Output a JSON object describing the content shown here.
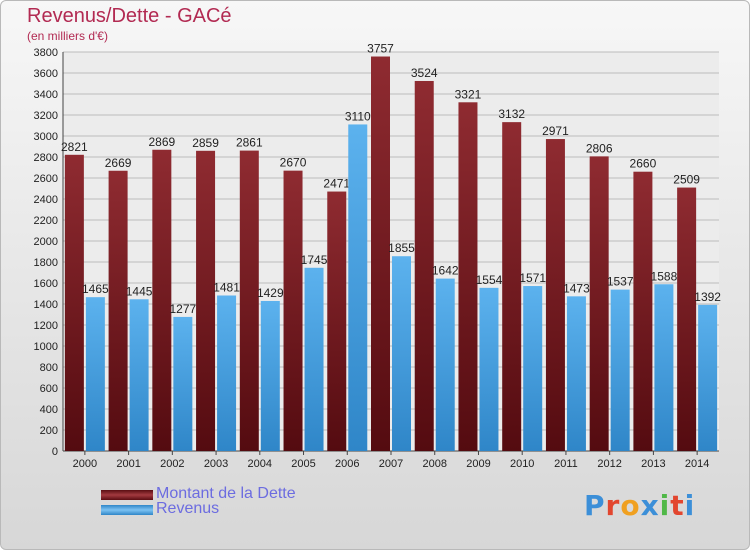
{
  "title": "Revenus/Dette - GACé",
  "subtitle": "(en milliers d'€)",
  "colors": {
    "dette": "#7a1d23",
    "revenus": "#4aa3e4",
    "title": "#b22a52",
    "legend_text": "#6c6ce0"
  },
  "legend": [
    {
      "label": "Montant de la Dette",
      "color": "#7a1d23"
    },
    {
      "label": "Revenus",
      "color": "#4aa3e4"
    }
  ],
  "logo": {
    "text": "Proxiti"
  },
  "chart_data": {
    "type": "bar",
    "categories": [
      "2000",
      "2001",
      "2002",
      "2003",
      "2004",
      "2005",
      "2006",
      "2007",
      "2008",
      "2009",
      "2010",
      "2011",
      "2012",
      "2013",
      "2014"
    ],
    "series": [
      {
        "name": "Montant de la Dette",
        "values": [
          2821,
          2669,
          2869,
          2859,
          2861,
          2670,
          2471,
          3757,
          3524,
          3321,
          3132,
          2971,
          2806,
          2660,
          2509
        ]
      },
      {
        "name": "Revenus",
        "values": [
          1465,
          1445,
          1277,
          1481,
          1429,
          1745,
          3110,
          1855,
          1642,
          1554,
          1571,
          1473,
          1537,
          1588,
          1392
        ]
      }
    ],
    "ylim": [
      0,
      3800
    ],
    "yticks": [
      0,
      200,
      400,
      600,
      800,
      1000,
      1200,
      1400,
      1600,
      1800,
      2000,
      2200,
      2400,
      2600,
      2800,
      3000,
      3200,
      3400,
      3600,
      3800
    ],
    "grid": true,
    "legend_position": "bottom-left"
  }
}
